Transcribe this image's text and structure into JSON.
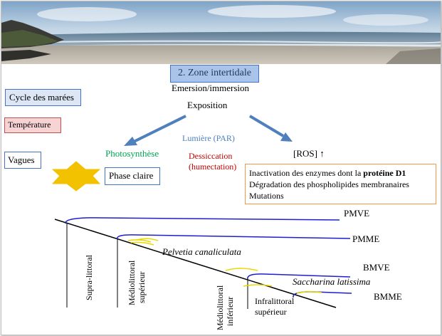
{
  "title": "2. Zone intertidale",
  "emersion": "Emersion/immersion",
  "exposition": "Exposition",
  "left_labels": {
    "cycle": "Cycle des marées",
    "temperature": "Température",
    "vagues": "Vagues"
  },
  "lumiere": "Lumière (PAR)",
  "photosynthese": "Photosynthèse",
  "phase_claire": "Phase claire",
  "dessiccation": {
    "line1": "Dessiccation",
    "line2": "(humectation)"
  },
  "ros": "[ROS] ↑",
  "effects": {
    "line1_prefix": "Inactivation des enzymes dont la ",
    "line1_bold": "protéine D1",
    "line2": "Dégradation des phospholipides membranaires",
    "line3": "Mutations"
  },
  "tide_levels": [
    "PMVE",
    "PMME",
    "BMVE",
    "BMME"
  ],
  "zones": {
    "supra": "Supra-littoral",
    "medio_sup_1": "Médiolittoral",
    "medio_sup_2": "supérieur",
    "medio_inf_1": "Médiolittoral",
    "medio_inf_2": "inférieur",
    "infra_1": "Infralittoral",
    "infra_2": "supérieur"
  },
  "species": {
    "pelvetia": "Pelvetia canaliculata",
    "saccharina": "Saccharina latissima"
  },
  "colors": {
    "title_fill": "#a9c4e8",
    "title_border": "#4472c4",
    "arrow": "#4f7fbd",
    "lumiere": "#4f81bd",
    "photosynthese": "#00a651",
    "dessiccation": "#c00000",
    "tide_line": "#1f1fd0",
    "algae": "#e8d800",
    "star": "#f2c200",
    "effects_border": "#f79646"
  }
}
